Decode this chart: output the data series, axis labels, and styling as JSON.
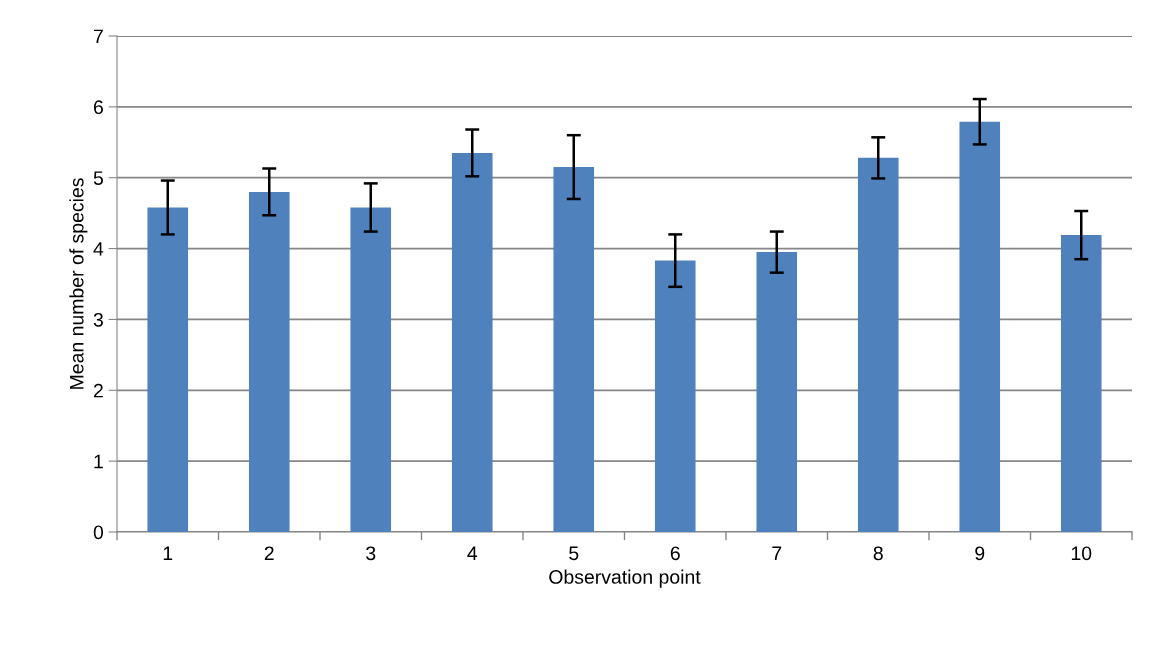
{
  "chart_data": {
    "type": "bar",
    "categories": [
      "1",
      "2",
      "3",
      "4",
      "5",
      "6",
      "7",
      "8",
      "9",
      "10"
    ],
    "values": [
      4.58,
      4.8,
      4.58,
      5.35,
      5.15,
      3.83,
      3.95,
      5.28,
      5.79,
      4.19
    ],
    "errors": [
      0.38,
      0.33,
      0.34,
      0.33,
      0.45,
      0.37,
      0.29,
      0.29,
      0.32,
      0.34
    ],
    "color": "#4f81bd",
    "xlabel": "Observation point",
    "ylabel": "Mean number of species",
    "ylim": [
      0,
      7
    ],
    "yticks": [
      0,
      1,
      2,
      3,
      4,
      5,
      6,
      7
    ],
    "grid": "y",
    "legend": false
  }
}
